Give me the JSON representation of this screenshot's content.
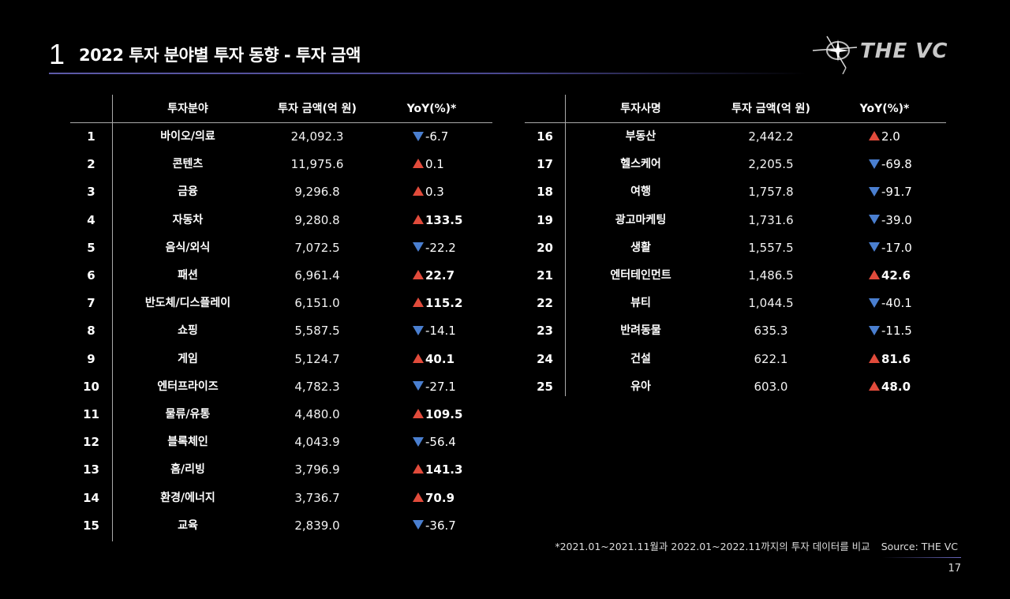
{
  "header": {
    "section_number": "1",
    "title": "2022 투자 분야별 투자 동향 - 투자 금액",
    "logo_text": "THE VC"
  },
  "left_table": {
    "headers": {
      "category": "투자분야",
      "amount": "투자 금액(억 원)",
      "yoy": "YoY(%)*"
    },
    "rows": [
      {
        "rank": "1",
        "category": "바이오/의료",
        "amount": "24,092.3",
        "yoy": "-6.7",
        "dir": "down"
      },
      {
        "rank": "2",
        "category": "콘텐츠",
        "amount": "11,975.6",
        "yoy": "0.1",
        "dir": "up"
      },
      {
        "rank": "3",
        "category": "금융",
        "amount": "9,296.8",
        "yoy": "0.3",
        "dir": "up"
      },
      {
        "rank": "4",
        "category": "자동차",
        "amount": "9,280.8",
        "yoy": "133.5",
        "dir": "up"
      },
      {
        "rank": "5",
        "category": "음식/외식",
        "amount": "7,072.5",
        "yoy": "-22.2",
        "dir": "down"
      },
      {
        "rank": "6",
        "category": "패션",
        "amount": "6,961.4",
        "yoy": "22.7",
        "dir": "up"
      },
      {
        "rank": "7",
        "category": "반도체/디스플레이",
        "amount": "6,151.0",
        "yoy": "115.2",
        "dir": "up"
      },
      {
        "rank": "8",
        "category": "쇼핑",
        "amount": "5,587.5",
        "yoy": "-14.1",
        "dir": "down"
      },
      {
        "rank": "9",
        "category": "게임",
        "amount": "5,124.7",
        "yoy": "40.1",
        "dir": "up"
      },
      {
        "rank": "10",
        "category": "엔터프라이즈",
        "amount": "4,782.3",
        "yoy": "-27.1",
        "dir": "down"
      },
      {
        "rank": "11",
        "category": "물류/유통",
        "amount": "4,480.0",
        "yoy": "109.5",
        "dir": "up"
      },
      {
        "rank": "12",
        "category": "블록체인",
        "amount": "4,043.9",
        "yoy": "-56.4",
        "dir": "down"
      },
      {
        "rank": "13",
        "category": "홈/리빙",
        "amount": "3,796.9",
        "yoy": "141.3",
        "dir": "up"
      },
      {
        "rank": "14",
        "category": "환경/에너지",
        "amount": "3,736.7",
        "yoy": "70.9",
        "dir": "up"
      },
      {
        "rank": "15",
        "category": "교육",
        "amount": "2,839.0",
        "yoy": "-36.7",
        "dir": "down"
      }
    ]
  },
  "right_table": {
    "headers": {
      "category": "투자사명",
      "amount": "투자 금액(억 원)",
      "yoy": "YoY(%)*"
    },
    "rows": [
      {
        "rank": "16",
        "category": "부동산",
        "amount": "2,442.2",
        "yoy": "2.0",
        "dir": "up"
      },
      {
        "rank": "17",
        "category": "헬스케어",
        "amount": "2,205.5",
        "yoy": "-69.8",
        "dir": "down"
      },
      {
        "rank": "18",
        "category": "여행",
        "amount": "1,757.8",
        "yoy": "-91.7",
        "dir": "down"
      },
      {
        "rank": "19",
        "category": "광고마케팅",
        "amount": "1,731.6",
        "yoy": "-39.0",
        "dir": "down"
      },
      {
        "rank": "20",
        "category": "생활",
        "amount": "1,557.5",
        "yoy": "-17.0",
        "dir": "down"
      },
      {
        "rank": "21",
        "category": "엔터테인먼트",
        "amount": "1,486.5",
        "yoy": "42.6",
        "dir": "up"
      },
      {
        "rank": "22",
        "category": "뷰티",
        "amount": "1,044.5",
        "yoy": "-40.1",
        "dir": "down"
      },
      {
        "rank": "23",
        "category": "반려동물",
        "amount": "635.3",
        "yoy": "-11.5",
        "dir": "down"
      },
      {
        "rank": "24",
        "category": "건설",
        "amount": "622.1",
        "yoy": "81.6",
        "dir": "up"
      },
      {
        "rank": "25",
        "category": "유아",
        "amount": "603.0",
        "yoy": "48.0",
        "dir": "up"
      }
    ]
  },
  "footer": {
    "note": "*2021.01~2021.11월과 2022.01~2022.11까지의 투자 데이터를 비교",
    "source": "Source: THE VC",
    "page_number": "17"
  },
  "colors": {
    "background": "#000000",
    "up_triangle": "#e14b3b",
    "down_triangle": "#4a7fd0",
    "accent_line": "#5d5aa8"
  }
}
